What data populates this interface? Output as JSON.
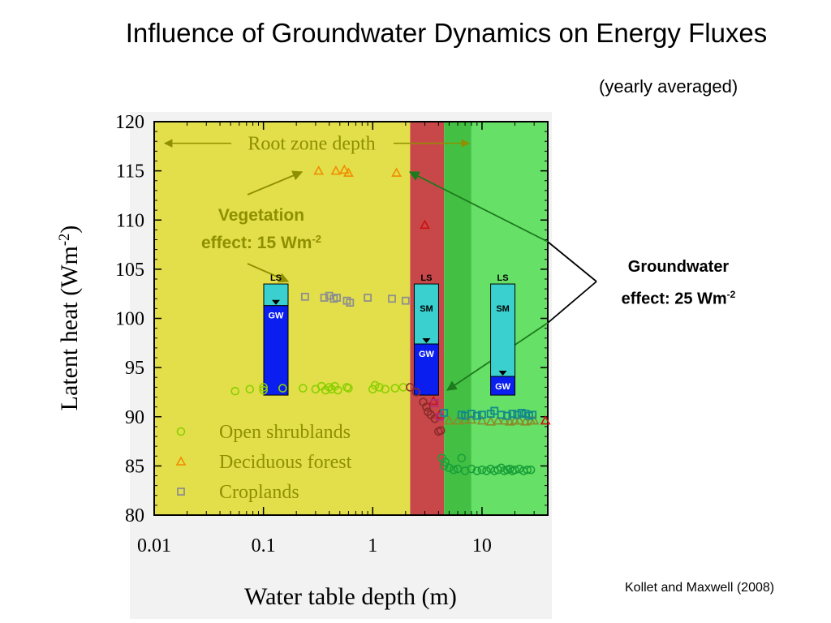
{
  "slide": {
    "title": "Influence of Groundwater Dynamics on Energy Fluxes",
    "subtitle": "(yearly averaged)",
    "citation": "Kollet and Maxwell (2008)",
    "groundwater_note": {
      "line1": "Groundwater",
      "line2_text": "effect: 25 Wm",
      "line2_sup": "-2"
    }
  },
  "chart_data": {
    "type": "scatter",
    "xlabel": "Water table depth (m)",
    "ylabel": "Latent heat (Wm-2)",
    "ylabel_parts": {
      "main": "Latent heat (Wm",
      "sup": "-2",
      "close": ")"
    },
    "x_scale": "log",
    "xlim": [
      0.01,
      40
    ],
    "ylim": [
      80,
      120
    ],
    "x_ticks": [
      0.01,
      0.1,
      1,
      10
    ],
    "x_tick_labels": [
      "0.01",
      "0.1",
      "1",
      "10"
    ],
    "y_ticks": [
      80,
      85,
      90,
      95,
      100,
      105,
      110,
      115,
      120
    ],
    "y_tick_labels": [
      "80",
      "85",
      "90",
      "95",
      "100",
      "105",
      "110",
      "115",
      "120"
    ],
    "zones": [
      {
        "from": 0.01,
        "to": 2.2,
        "color": "#e2df4a"
      },
      {
        "from": 2.2,
        "to": 4.5,
        "color": "#c8484a"
      },
      {
        "from": 4.5,
        "to": 8.0,
        "color": "#43c043"
      },
      {
        "from": 8.0,
        "to": 40,
        "color": "#66e066"
      }
    ],
    "legend_position": "bottom-left",
    "series": [
      {
        "name": "Open shrublands",
        "marker": "circle",
        "color": "#8bcf00",
        "points": [
          [
            0.055,
            92.6
          ],
          [
            0.075,
            92.8
          ],
          [
            0.1,
            93.0
          ],
          [
            0.1,
            92.7
          ],
          [
            0.15,
            92.9
          ],
          [
            0.23,
            92.9
          ],
          [
            0.3,
            92.8
          ],
          [
            0.34,
            93.1
          ],
          [
            0.37,
            92.7
          ],
          [
            0.4,
            93.0
          ],
          [
            0.42,
            92.8
          ],
          [
            0.45,
            93.1
          ],
          [
            0.48,
            92.7
          ],
          [
            0.58,
            93.0
          ],
          [
            0.6,
            92.9
          ],
          [
            1.0,
            92.8
          ],
          [
            1.05,
            93.2
          ],
          [
            1.15,
            93.0
          ],
          [
            1.3,
            92.8
          ],
          [
            1.6,
            92.9
          ],
          [
            1.9,
            93.0
          ]
        ]
      },
      {
        "name": "Open shrublands (shallow)",
        "marker": "circle",
        "color": "#8b2a2a",
        "points": [
          [
            2.2,
            93.0
          ],
          [
            2.5,
            92.5
          ],
          [
            2.9,
            91.5
          ],
          [
            3.1,
            91.0
          ],
          [
            3.2,
            90.5
          ],
          [
            3.4,
            90.2
          ],
          [
            3.7,
            89.8
          ],
          [
            4.0,
            88.5
          ],
          [
            4.2,
            88.6
          ]
        ]
      },
      {
        "name": "Open shrublands (deep)",
        "marker": "circle",
        "color": "#1aa03a",
        "points": [
          [
            4.3,
            85.8
          ],
          [
            4.5,
            85.0
          ],
          [
            4.6,
            85.4
          ],
          [
            5.0,
            84.8
          ],
          [
            5.5,
            84.6
          ],
          [
            6.0,
            84.7
          ],
          [
            6.5,
            85.8
          ],
          [
            7.0,
            84.5
          ],
          [
            8,
            84.7
          ],
          [
            9,
            84.5
          ],
          [
            10,
            84.6
          ],
          [
            11,
            84.5
          ],
          [
            12,
            84.7
          ],
          [
            13,
            84.5
          ],
          [
            14,
            84.6
          ],
          [
            15,
            84.8
          ],
          [
            16,
            84.5
          ],
          [
            17,
            84.6
          ],
          [
            18,
            84.7
          ],
          [
            19,
            84.5
          ],
          [
            20,
            84.6
          ],
          [
            22,
            84.7
          ],
          [
            24,
            84.5
          ],
          [
            26,
            84.6
          ],
          [
            28,
            84.6
          ]
        ]
      },
      {
        "name": "Deciduous forest",
        "marker": "triangle",
        "color": "#f08c00",
        "points": [
          [
            0.32,
            115.0
          ],
          [
            0.46,
            115.0
          ],
          [
            0.55,
            115.1
          ],
          [
            0.6,
            114.8
          ],
          [
            1.65,
            114.8
          ]
        ]
      },
      {
        "name": "Deciduous forest (shallow)",
        "marker": "triangle",
        "color": "#cc1111",
        "points": [
          [
            3.0,
            109.5
          ],
          [
            3.6,
            91.6
          ],
          [
            4.1,
            90.2
          ],
          [
            38,
            89.6
          ]
        ]
      },
      {
        "name": "Deciduous forest (deep)",
        "marker": "triangle",
        "color": "#8b8b2a",
        "points": [
          [
            5.0,
            89.6
          ],
          [
            6.0,
            89.6
          ],
          [
            7.0,
            89.7
          ],
          [
            8,
            89.7
          ],
          [
            10,
            89.6
          ],
          [
            12,
            89.5
          ],
          [
            14,
            89.6
          ],
          [
            16,
            89.6
          ],
          [
            18,
            89.5
          ],
          [
            20,
            89.6
          ],
          [
            22,
            89.6
          ],
          [
            25,
            89.5
          ],
          [
            28,
            89.6
          ],
          [
            30,
            89.6
          ]
        ]
      },
      {
        "name": "Croplands",
        "marker": "square",
        "color": "#8f8f8f",
        "points": [
          [
            0.24,
            102.2
          ],
          [
            0.36,
            102.1
          ],
          [
            0.4,
            102.3
          ],
          [
            0.44,
            102.0
          ],
          [
            0.47,
            102.1
          ],
          [
            0.58,
            101.8
          ],
          [
            0.62,
            101.6
          ],
          [
            0.9,
            102.1
          ],
          [
            1.5,
            102.0
          ],
          [
            2.0,
            101.8
          ]
        ]
      },
      {
        "name": "Croplands (shallow)",
        "marker": "square",
        "color": "#b0307a",
        "points": [
          [
            3.7,
            91.4
          ],
          [
            4.1,
            90.0
          ]
        ]
      },
      {
        "name": "Croplands (deep)",
        "marker": "square",
        "color": "#138a8a",
        "points": [
          [
            4.5,
            90.4
          ],
          [
            6.5,
            90.2
          ],
          [
            7,
            90.1
          ],
          [
            8,
            90.3
          ],
          [
            9,
            90.1
          ],
          [
            10,
            90.2
          ],
          [
            12,
            90.3
          ],
          [
            13,
            90.6
          ],
          [
            15,
            90.2
          ],
          [
            17,
            90.1
          ],
          [
            19,
            90.3
          ],
          [
            21,
            90.2
          ],
          [
            23,
            90.4
          ],
          [
            25,
            90.3
          ],
          [
            27,
            90.1
          ],
          [
            29,
            90.2
          ]
        ]
      }
    ],
    "legend": [
      {
        "label": "Open shrublands",
        "marker": "circle",
        "color": "#8bcf00"
      },
      {
        "label": "Deciduous forest",
        "marker": "triangle",
        "color": "#f08c00"
      },
      {
        "label": "Croplands",
        "marker": "square",
        "color": "#8f8f8f"
      }
    ],
    "annotations": {
      "root_zone": {
        "label": "Root zone depth",
        "from": 0.01,
        "to": 3.2,
        "y": 117.8
      },
      "vegetation": {
        "line1": "Vegetation",
        "line2_text": "effect: 15 Wm",
        "line2_sup": "-2"
      }
    },
    "columns": [
      {
        "name": "column-shallow-root",
        "x": 0.13,
        "top": 103.5,
        "bottom": 92.2,
        "ls_label": "LS",
        "sm_label": "",
        "gw_label": "GW",
        "water_table": 101.3
      },
      {
        "name": "column-intermediate",
        "x": 3.1,
        "top": 103.5,
        "bottom": 92.2,
        "ls_label": "LS",
        "sm_label": "SM",
        "gw_label": "GW",
        "water_table": 97.4
      },
      {
        "name": "column-deep",
        "x": 15.5,
        "top": 103.5,
        "bottom": 92.2,
        "ls_label": "LS",
        "sm_label": "SM",
        "gw_label": "GW",
        "water_table": 94.1
      }
    ]
  }
}
